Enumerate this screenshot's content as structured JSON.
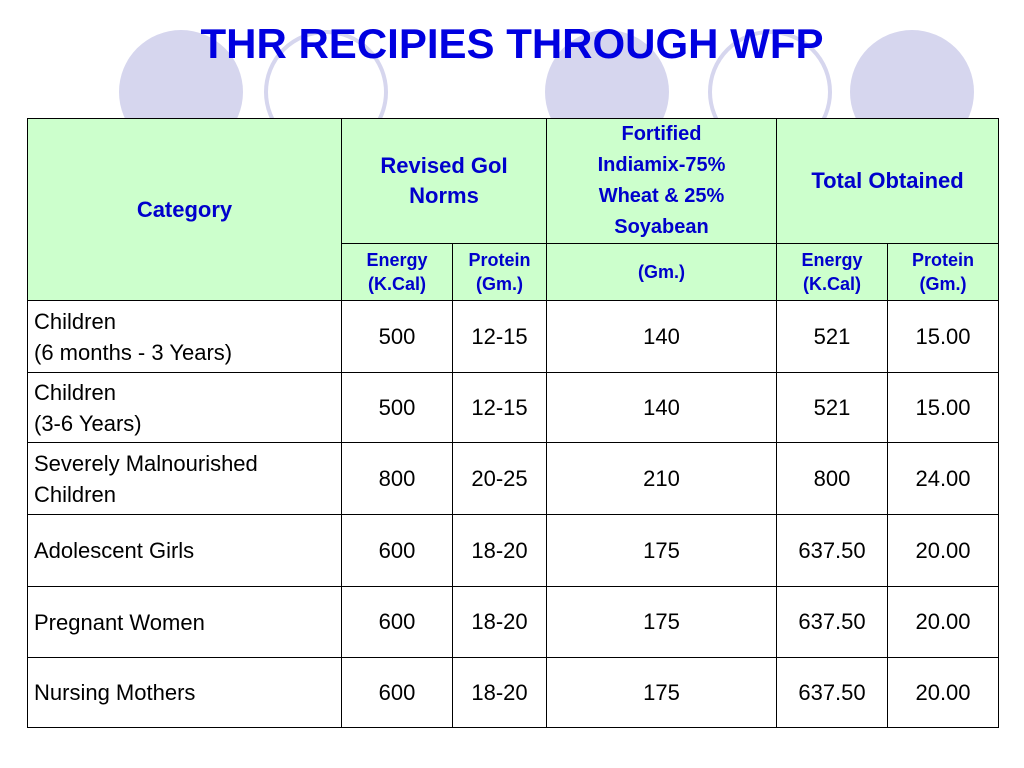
{
  "title": "THR RECIPIES THROUGH WFP",
  "table": {
    "header": {
      "category": [
        "Category"
      ],
      "groups": [
        [
          "Revised GoI",
          "Norms"
        ],
        [
          "Fortified",
          "Indiamix-75%",
          "Wheat & 25%",
          "Soyabean"
        ],
        [
          "Total Obtained"
        ]
      ],
      "subheaders": [
        [
          "Energy",
          "(K.Cal)"
        ],
        [
          "Protein",
          "(Gm.)"
        ],
        [
          "(Gm.)"
        ],
        [
          "Energy",
          "(K.Cal)"
        ],
        [
          "Protein",
          "(Gm.)"
        ]
      ]
    },
    "rows": [
      [
        [
          "Children",
          "(6 months - 3 Years)"
        ],
        "500",
        "12-15",
        "140",
        "521",
        "15.00"
      ],
      [
        [
          "Children",
          "(3-6 Years)"
        ],
        "500",
        "12-15",
        "140",
        "521",
        "15.00"
      ],
      [
        [
          "Severely Malnourished",
          "Children"
        ],
        "800",
        "20-25",
        "210",
        "800",
        "24.00"
      ],
      [
        [
          "Adolescent Girls"
        ],
        "600",
        "18-20",
        "175",
        "637.50",
        "20.00"
      ],
      [
        [
          "Pregnant Women"
        ],
        "600",
        "18-20",
        "175",
        "637.50",
        "20.00"
      ],
      [
        [
          "Nursing Mothers"
        ],
        "600",
        "18-20",
        "175",
        "637.50",
        "20.00"
      ]
    ]
  }
}
